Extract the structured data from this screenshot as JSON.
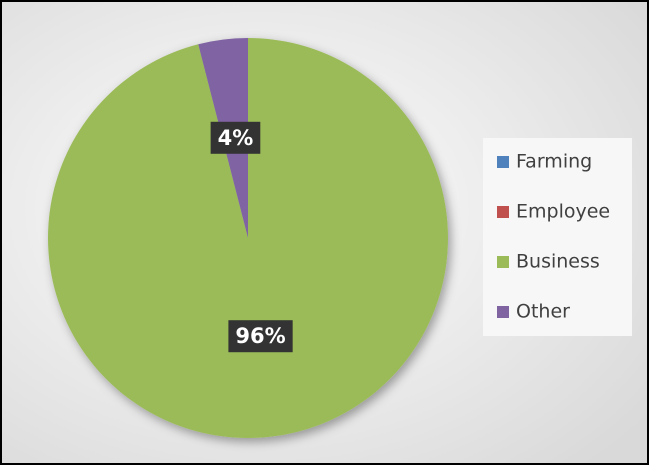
{
  "chart_data": {
    "type": "pie",
    "categories": [
      "Farming",
      "Employee",
      "Business",
      "Other"
    ],
    "values": [
      0,
      0,
      96,
      4
    ],
    "value_labels": [
      null,
      null,
      "96%",
      "4%"
    ],
    "colors": [
      "#4f81bd",
      "#c0504d",
      "#9bbb59",
      "#8064a2"
    ],
    "legend": "right"
  }
}
